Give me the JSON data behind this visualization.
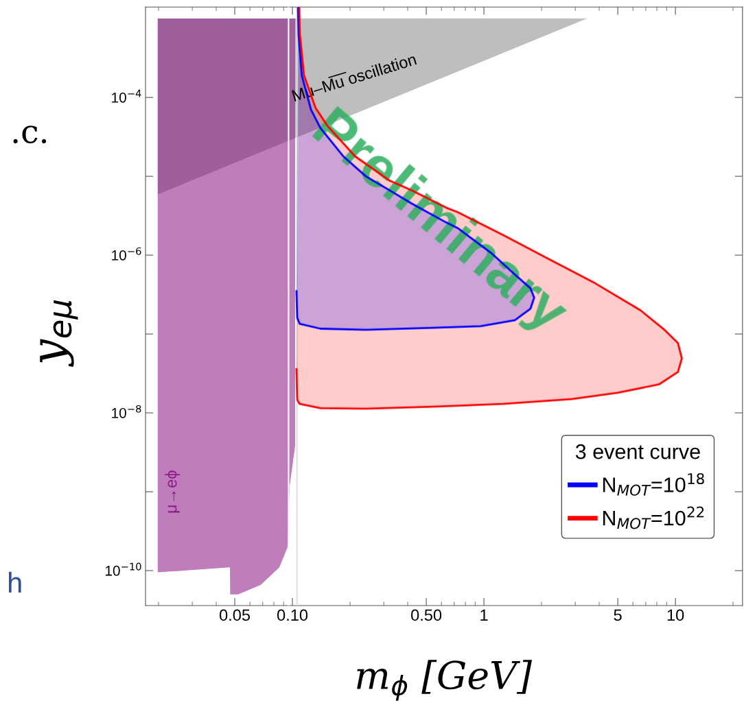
{
  "chart_data": {
    "type": "area",
    "xlabel": "m$_{ϕ}$ [GeV]",
    "ylabel": "y$_{eμ}$",
    "legend_title": "3 event curve",
    "log": "xy",
    "xlim": [
      0.0171,
      22.4
    ],
    "ylim": [
      3.6e-11,
      0.0014
    ],
    "xticks": [
      {
        "value": 0.05,
        "label": "0.05"
      },
      {
        "value": 0.1,
        "label": "0.10"
      },
      {
        "value": 0.5,
        "label": "0.50"
      },
      1,
      5,
      10
    ],
    "yticks": [
      {
        "value": 0.0001,
        "label": "10$^{−4}$"
      },
      {
        "value": 1e-05,
        "label": null
      },
      {
        "value": 1e-06,
        "label": "10$^{−6}$"
      },
      {
        "value": 1e-07,
        "label": null
      },
      {
        "value": 1e-08,
        "label": "10$^{−8}$"
      },
      {
        "value": 1e-09,
        "label": null
      },
      {
        "value": 1e-10,
        "label": "10$^{−10}$"
      }
    ],
    "grid": false,
    "legend": "bottom right",
    "ref_lines": [
      {
        "axis": "x",
        "value": 0.0955,
        "label": null,
        "color": "#ffffff"
      },
      {
        "axis": "x",
        "value": 0.1057,
        "label": null,
        "color": "#dddddd"
      }
    ],
    "annotations": [
      "Mu–M̅u̅ oscillation",
      "μ→eϕ",
      "Preliminary",
      ".c.",
      "h"
    ],
    "series": [
      {
        "color": "#bebebe",
        "x": [
          0.0198,
          3.45,
          0.0198
        ],
        "values": [
          0.001,
          0.001,
          5.9e-06
        ]
      },
      {
        "color": "#bf7dbb",
        "x": [
          0.0198,
          0.1033,
          0.1033,
          0.0968,
          0.0944,
          0.0855,
          0.0684,
          0.052,
          0.0473,
          0.0472,
          0.0198
        ],
        "values": [
          0.001,
          0.001,
          3.8e-09,
          1.2e-09,
          2e-10,
          1.1e-10,
          6.6e-11,
          5e-11,
          5e-11,
          1.1e-10,
          9.5e-11
        ]
      },
      {
        "name": "N$_{MOT}$=10$^{18}$",
        "color": "#0000ff",
        "x": [
          0.1069,
          0.1077,
          0.112,
          0.125,
          0.14,
          0.184,
          0.242,
          0.32,
          0.421,
          0.635,
          0.731,
          1.1,
          1.45,
          1.75,
          1.83,
          1.75,
          1.45,
          0.96,
          0.552,
          0.242,
          0.14,
          0.109,
          0.106,
          0.105
        ],
        "values": [
          0.0014,
          0.00063,
          0.00019,
          7e-05,
          4.1e-05,
          1.8e-05,
          1e-05,
          6.7e-06,
          4.5e-06,
          2.6e-06,
          2.2e-06,
          1.05e-06,
          5.7e-07,
          3.8e-07,
          2.9e-07,
          2.1e-07,
          1.5e-07,
          1.26e-07,
          1.2e-07,
          1.13e-07,
          1.17e-07,
          1.35e-07,
          1.6e-07,
          3.5e-07
        ]
      },
      {
        "name": "N$_{MOT}$=10$^{22}$",
        "color": "#ff0000",
        "x": [
          0.1086,
          0.1094,
          0.115,
          0.132,
          0.152,
          0.212,
          0.32,
          0.421,
          0.635,
          0.731,
          1.26,
          2.19,
          3.81,
          6.57,
          8.69,
          10.3,
          10.8,
          10.3,
          8.2,
          5.0,
          2.88,
          1.26,
          0.552,
          0.242,
          0.14,
          0.109,
          0.106,
          0.105
        ],
        "values": [
          0.0014,
          0.00063,
          0.00019,
          7.4e-05,
          4.4e-05,
          1.8e-05,
          8.9e-06,
          6.6e-06,
          4e-06,
          3.5e-06,
          1.8e-06,
          8.9e-07,
          4.4e-07,
          2e-07,
          1.15e-07,
          7.7e-08,
          4.9e-08,
          3.3e-08,
          2.3e-08,
          1.8e-08,
          1.5e-08,
          1.3e-08,
          1.2e-08,
          1.13e-08,
          1.15e-08,
          1.3e-08,
          1.47e-08,
          3.6e-08
        ]
      }
    ]
  }
}
